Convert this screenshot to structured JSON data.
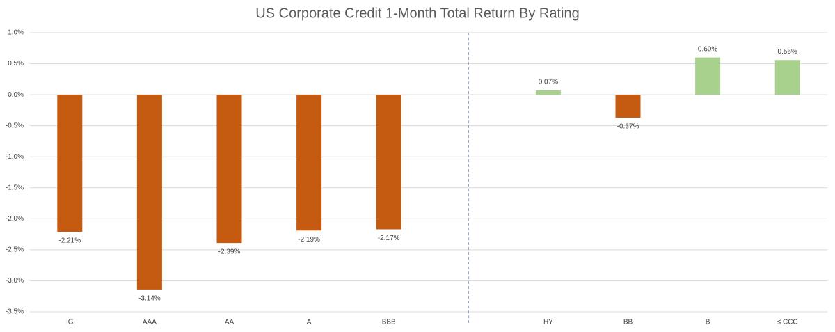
{
  "chart_data": {
    "type": "bar",
    "title": "US Corporate Credit 1-Month Total Return By Rating",
    "categories": [
      "IG",
      "AAA",
      "AA",
      "A",
      "BBB",
      null,
      "HY",
      "BB",
      "B",
      "≤ CCC"
    ],
    "values": [
      -2.21,
      -3.14,
      -2.39,
      -2.19,
      -2.17,
      null,
      0.07,
      -0.37,
      0.6,
      0.56
    ],
    "value_labels": [
      "-2.21%",
      "-3.14%",
      "-2.39%",
      "-2.19%",
      "-2.17%",
      null,
      "0.07%",
      "-0.37%",
      "0.60%",
      "0.56%"
    ],
    "colors": [
      "#c55a11",
      "#c55a11",
      "#c55a11",
      "#c55a11",
      "#c55a11",
      null,
      "#a9d18e",
      "#c55a11",
      "#a9d18e",
      "#a9d18e"
    ],
    "ylim": [
      -3.5,
      1.0
    ],
    "yticks": [
      {
        "value": -3.5,
        "label": "-3.5%"
      },
      {
        "value": -3.0,
        "label": "-3.0%"
      },
      {
        "value": -2.5,
        "label": "-2.5%"
      },
      {
        "value": -2.0,
        "label": "-2.0%"
      },
      {
        "value": -1.5,
        "label": "-1.5%"
      },
      {
        "value": -1.0,
        "label": "-1.0%"
      },
      {
        "value": -0.5,
        "label": "-0.5%"
      },
      {
        "value": 0.0,
        "label": "0.0%"
      },
      {
        "value": 0.5,
        "label": "0.5%"
      },
      {
        "value": 1.0,
        "label": "1.0%"
      }
    ],
    "grid": true
  }
}
